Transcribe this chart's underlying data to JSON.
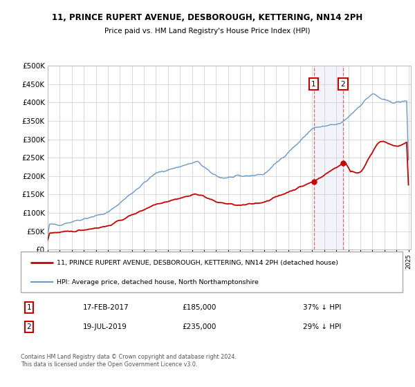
{
  "title_line1": "11, PRINCE RUPERT AVENUE, DESBOROUGH, KETTERING, NN14 2PH",
  "title_line2": "Price paid vs. HM Land Registry's House Price Index (HPI)",
  "legend_label_red": "11, PRINCE RUPERT AVENUE, DESBOROUGH, KETTERING, NN14 2PH (detached house)",
  "legend_label_blue": "HPI: Average price, detached house, North Northamptonshire",
  "annotation1_label": "1",
  "annotation1_date": "17-FEB-2017",
  "annotation1_price": "£185,000",
  "annotation1_pct": "37% ↓ HPI",
  "annotation1_year": 2017.12,
  "annotation1_value": 185000,
  "annotation2_label": "2",
  "annotation2_date": "19-JUL-2019",
  "annotation2_price": "£235,000",
  "annotation2_pct": "29% ↓ HPI",
  "annotation2_year": 2019.55,
  "annotation2_value": 235000,
  "footer_text": "Contains HM Land Registry data © Crown copyright and database right 2024.\nThis data is licensed under the Open Government Licence v3.0.",
  "ylim_max": 500000,
  "bg_color": "#ffffff",
  "plot_bg_color": "#ffffff",
  "grid_color": "#cccccc",
  "red_color": "#cc0000",
  "blue_color": "#6699cc"
}
